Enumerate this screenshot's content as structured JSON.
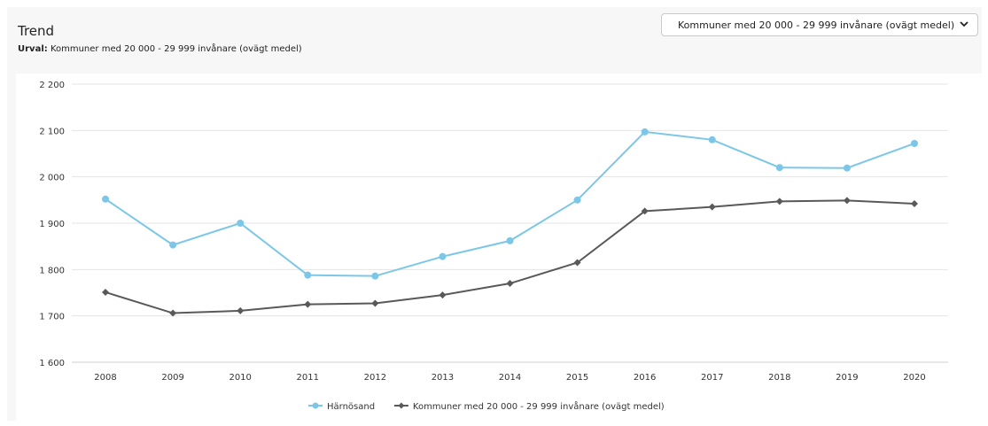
{
  "header": {
    "title": "Trend",
    "subtitle_label": "Urval:",
    "subtitle_value": "Kommuner med 20 000 - 29 999 invånare (ovägt medel)"
  },
  "selector": {
    "selected": "Kommuner med 20 000 - 29 999 invånare (ovägt medel)",
    "caret_icon": "chevron-down-icon"
  },
  "chart_data": {
    "type": "line",
    "categories": [
      "2008",
      "2009",
      "2010",
      "2011",
      "2012",
      "2013",
      "2014",
      "2015",
      "2016",
      "2017",
      "2018",
      "2019",
      "2020"
    ],
    "ylim": [
      1600,
      2200
    ],
    "yticks": [
      1600,
      1700,
      1800,
      1900,
      2000,
      2100,
      2200
    ],
    "ytick_labels": [
      "1 600",
      "1 700",
      "1 800",
      "1 900",
      "2 000",
      "2 100",
      "2 200"
    ],
    "grid": true,
    "legend_position": "bottom-center",
    "series": [
      {
        "name": "Härnösand",
        "color": "#7cc7e8",
        "marker": "circle",
        "values": [
          1952,
          1853,
          1900,
          1788,
          1786,
          1828,
          1862,
          1950,
          2097,
          2080,
          2020,
          2019,
          2072
        ]
      },
      {
        "name": "Kommuner med 20 000 - 29 999 invånare (ovägt medel)",
        "color": "#595959",
        "marker": "diamond",
        "values": [
          1751,
          1706,
          1711,
          1725,
          1727,
          1745,
          1770,
          1815,
          1926,
          1935,
          1947,
          1949,
          1942
        ]
      }
    ]
  }
}
